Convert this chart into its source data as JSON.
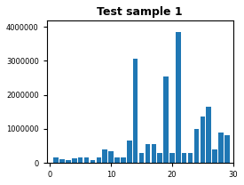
{
  "title": "Test sample 1",
  "bar_color": "#1f77b4",
  "xlim": [
    -0.5,
    30
  ],
  "ylim": [
    0,
    4200000
  ],
  "x_positions": [
    1,
    2,
    3,
    4,
    5,
    6,
    7,
    8,
    9,
    10,
    11,
    12,
    13,
    14,
    15,
    16,
    17,
    18,
    19,
    20,
    21,
    22,
    23,
    24,
    25,
    26,
    27,
    28,
    29
  ],
  "values": [
    150000,
    100000,
    80000,
    120000,
    150000,
    170000,
    80000,
    150000,
    400000,
    350000,
    150000,
    170000,
    650000,
    3050000,
    300000,
    550000,
    550000,
    300000,
    2550000,
    300000,
    3850000,
    280000,
    280000,
    1000000,
    1350000,
    1650000,
    400000,
    900000,
    800000
  ],
  "yticks": [
    0,
    1000000,
    2000000,
    3000000,
    4000000
  ],
  "ytick_labels": [
    "0",
    "1000000",
    "2000000",
    "3000000",
    "4000000"
  ],
  "xticks": [
    0,
    10,
    20,
    30
  ],
  "xtick_labels": [
    "0",
    "10",
    "20",
    "30"
  ],
  "title_fontsize": 9,
  "tick_fontsize": 6,
  "bar_width": 0.8
}
